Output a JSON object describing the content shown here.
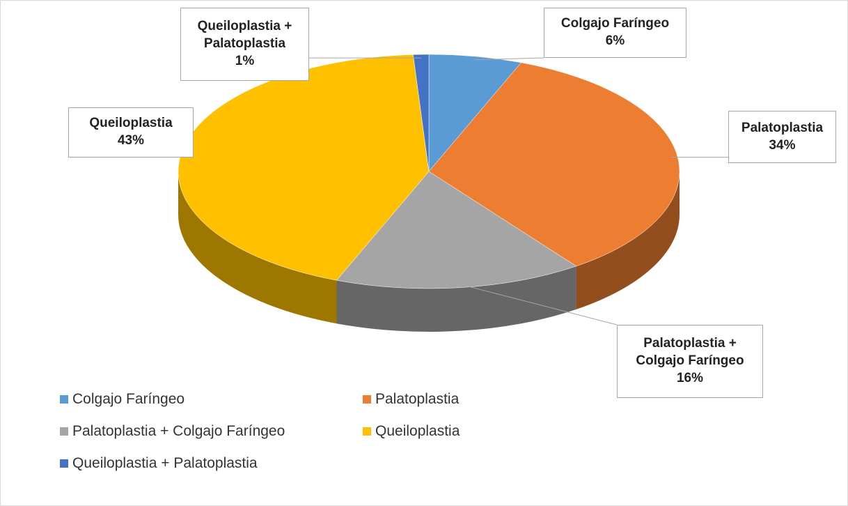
{
  "chart_data": {
    "type": "pie3d",
    "categories": [
      "Colgajo Faríngeo",
      "Palatoplastia",
      "Palatoplastia + Colgajo Faríngeo",
      "Queiloplastia",
      "Queiloplastia +  Palatoplastia"
    ],
    "values": [
      6,
      34,
      16,
      43,
      1
    ],
    "value_labels": [
      "6%",
      "34%",
      "16%",
      "43%",
      "1%"
    ],
    "colors": [
      "#5b9bd5",
      "#ed7d31",
      "#a5a5a5",
      "#ffc000",
      "#4472c4"
    ],
    "legend": "bottom"
  }
}
